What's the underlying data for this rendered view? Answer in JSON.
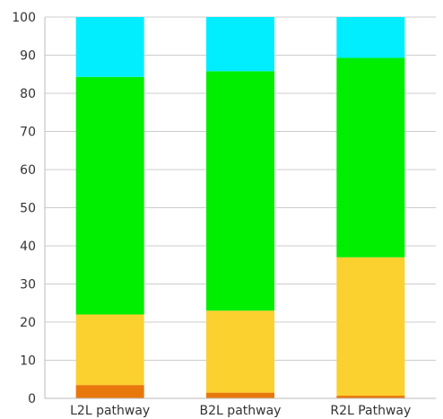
{
  "chart_data": {
    "type": "bar",
    "stacked": true,
    "categories": [
      "L2L pathway",
      "B2L pathway",
      "R2L Pathway"
    ],
    "series": [
      {
        "values": [
          3.5,
          1.5,
          0.7
        ],
        "color": "#e8780c"
      },
      {
        "values": [
          18.5,
          21.5,
          36.3
        ],
        "color": "#fbd130"
      },
      {
        "values": [
          62.3,
          62.8,
          52.3
        ],
        "color": "#00ee00"
      },
      {
        "values": [
          15.7,
          14.2,
          10.7
        ],
        "color": "#00eeff"
      }
    ],
    "ylim": [
      0,
      100
    ],
    "yticks": [
      "0",
      "10",
      "20",
      "30",
      "40",
      "50",
      "60",
      "70",
      "80",
      "90",
      "100"
    ],
    "grid": true,
    "legend": "none",
    "title": "",
    "xlabel": "",
    "ylabel": ""
  }
}
